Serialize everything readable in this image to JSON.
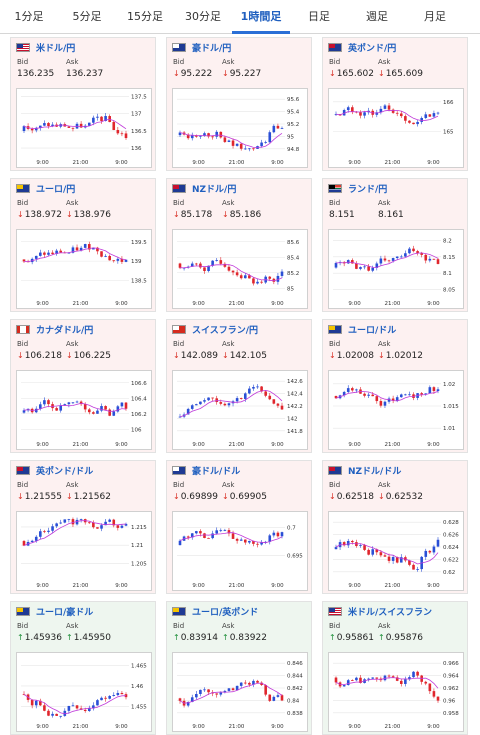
{
  "tabs": [
    {
      "label": "1分足",
      "active": false
    },
    {
      "label": "5分足",
      "active": false
    },
    {
      "label": "15分足",
      "active": false
    },
    {
      "label": "30分足",
      "active": false
    },
    {
      "label": "1時間足",
      "active": true
    },
    {
      "label": "日足",
      "active": false
    },
    {
      "label": "週足",
      "active": false
    },
    {
      "label": "月足",
      "active": false
    }
  ],
  "labels": {
    "bid": "Bid",
    "ask": "Ask"
  },
  "colors": {
    "up": "#1f8f3a",
    "down": "#d93025",
    "candle_up": "#2a4fd6",
    "candle_down": "#e0262d",
    "ma": "#c03ad9",
    "accent": "#2a6fd6"
  },
  "cards": [
    {
      "pair": "米ドル/円",
      "flag": "US",
      "direction": "none",
      "bid": "136.235",
      "ask": "136.237",
      "chart_data": {
        "type": "candlestick",
        "x_ticks": [
          "9:00",
          "21:00",
          "9:00"
        ],
        "y_ticks": [
          "137.5",
          "137",
          "136.5",
          "136"
        ],
        "ylim": [
          135.8,
          137.6
        ]
      }
    },
    {
      "pair": "豪ドル/円",
      "flag": "AU",
      "direction": "down",
      "bid": "95.222",
      "ask": "95.227",
      "chart_data": {
        "type": "candlestick",
        "x_ticks": [
          "9:00",
          "21:00",
          "9:00"
        ],
        "y_ticks": [
          "95.6",
          "95.4",
          "95.2",
          "95",
          "94.8"
        ],
        "ylim": [
          94.7,
          95.7
        ]
      }
    },
    {
      "pair": "英ポンド/円",
      "flag": "GB",
      "direction": "down",
      "bid": "165.602",
      "ask": "165.609",
      "chart_data": {
        "type": "candlestick",
        "x_ticks": [
          "9:00",
          "21:00",
          "9:00"
        ],
        "y_ticks": [
          "166",
          "165"
        ],
        "ylim": [
          164.2,
          166.3
        ]
      }
    },
    {
      "pair": "ユーロ/円",
      "flag": "EU",
      "direction": "down",
      "bid": "138.972",
      "ask": "138.976",
      "chart_data": {
        "type": "candlestick",
        "x_ticks": [
          "9:00",
          "21:00",
          "9:00"
        ],
        "y_ticks": [
          "139.5",
          "139",
          "138.5"
        ],
        "ylim": [
          138.1,
          139.7
        ]
      }
    },
    {
      "pair": "NZドル/円",
      "flag": "NZ",
      "direction": "down",
      "bid": "85.178",
      "ask": "85.186",
      "chart_data": {
        "type": "candlestick",
        "x_ticks": [
          "9:00",
          "21:00",
          "9:00"
        ],
        "y_ticks": [
          "85.6",
          "85.4",
          "85.2",
          "85"
        ],
        "ylim": [
          84.9,
          85.7
        ]
      }
    },
    {
      "pair": "ランド/円",
      "flag": "ZA",
      "direction": "none",
      "bid": "8.151",
      "ask": "8.161",
      "chart_data": {
        "type": "candlestick",
        "x_ticks": [
          "9:00",
          "21:00",
          "9:00"
        ],
        "y_ticks": [
          "8.2",
          "8.15",
          "8.1",
          "8.05"
        ],
        "ylim": [
          8.03,
          8.22
        ]
      }
    },
    {
      "pair": "カナダドル/円",
      "flag": "CA",
      "direction": "down",
      "bid": "106.218",
      "ask": "106.225",
      "chart_data": {
        "type": "candlestick",
        "x_ticks": [
          "9:00",
          "21:00",
          "9:00"
        ],
        "y_ticks": [
          "106.6",
          "106.4",
          "106.2",
          "106"
        ],
        "ylim": [
          105.9,
          106.7
        ]
      }
    },
    {
      "pair": "スイスフラン/円",
      "flag": "CH",
      "direction": "down",
      "bid": "142.089",
      "ask": "142.105",
      "chart_data": {
        "type": "candlestick",
        "x_ticks": [
          "9:00",
          "21:00",
          "9:00"
        ],
        "y_ticks": [
          "142.6",
          "142.4",
          "142.2",
          "142",
          "141.8"
        ],
        "ylim": [
          141.7,
          142.7
        ]
      }
    },
    {
      "pair": "ユーロ/ドル",
      "flag": "EU",
      "direction": "down",
      "bid": "1.02008",
      "ask": "1.02012",
      "chart_data": {
        "type": "candlestick",
        "x_ticks": [
          "9:00",
          "21:00",
          "9:00"
        ],
        "y_ticks": [
          "1.02",
          "1.015",
          "1.01"
        ],
        "ylim": [
          1.008,
          1.022
        ]
      }
    },
    {
      "pair": "英ポンド/ドル",
      "flag": "GB",
      "direction": "down",
      "bid": "1.21555",
      "ask": "1.21562",
      "chart_data": {
        "type": "candlestick",
        "x_ticks": [
          "9:00",
          "21:00",
          "9:00"
        ],
        "y_ticks": [
          "1.215",
          "1.21",
          "1.205"
        ],
        "ylim": [
          1.201,
          1.218
        ]
      }
    },
    {
      "pair": "豪ドル/ドル",
      "flag": "AU",
      "direction": "down",
      "bid": "0.69899",
      "ask": "0.69905",
      "chart_data": {
        "type": "candlestick",
        "x_ticks": [
          "9:00",
          "21:00",
          "9:00"
        ],
        "y_ticks": [
          "0.7",
          "0.695"
        ],
        "ylim": [
          0.691,
          0.702
        ]
      }
    },
    {
      "pair": "NZドル/ドル",
      "flag": "NZ",
      "direction": "down",
      "bid": "0.62518",
      "ask": "0.62532",
      "chart_data": {
        "type": "candlestick",
        "x_ticks": [
          "9:00",
          "21:00",
          "9:00"
        ],
        "y_ticks": [
          "0.628",
          "0.626",
          "0.624",
          "0.622",
          "0.62"
        ],
        "ylim": [
          0.619,
          0.629
        ]
      }
    },
    {
      "pair": "ユーロ/豪ドル",
      "flag": "EU",
      "direction": "up",
      "bid": "1.45936",
      "ask": "1.45950",
      "chart_data": {
        "type": "candlestick",
        "x_ticks": [
          "9:00",
          "21:00",
          "9:00"
        ],
        "y_ticks": [
          "1.465",
          "1.46",
          "1.455"
        ],
        "ylim": [
          1.452,
          1.467
        ]
      }
    },
    {
      "pair": "ユーロ/英ポンド",
      "flag": "EU",
      "direction": "up",
      "bid": "0.83914",
      "ask": "0.83922",
      "chart_data": {
        "type": "candlestick",
        "x_ticks": [
          "9:00",
          "21:00",
          "9:00"
        ],
        "y_ticks": [
          "0.846",
          "0.844",
          "0.842",
          "0.84",
          "0.838"
        ],
        "ylim": [
          0.837,
          0.847
        ]
      }
    },
    {
      "pair": "米ドル/スイスフラン",
      "flag": "US",
      "direction": "up",
      "bid": "0.95861",
      "ask": "0.95876",
      "chart_data": {
        "type": "candlestick",
        "x_ticks": [
          "9:00",
          "21:00",
          "9:00"
        ],
        "y_ticks": [
          "0.966",
          "0.964",
          "0.962",
          "0.96",
          "0.958"
        ],
        "ylim": [
          0.957,
          0.967
        ]
      }
    }
  ]
}
